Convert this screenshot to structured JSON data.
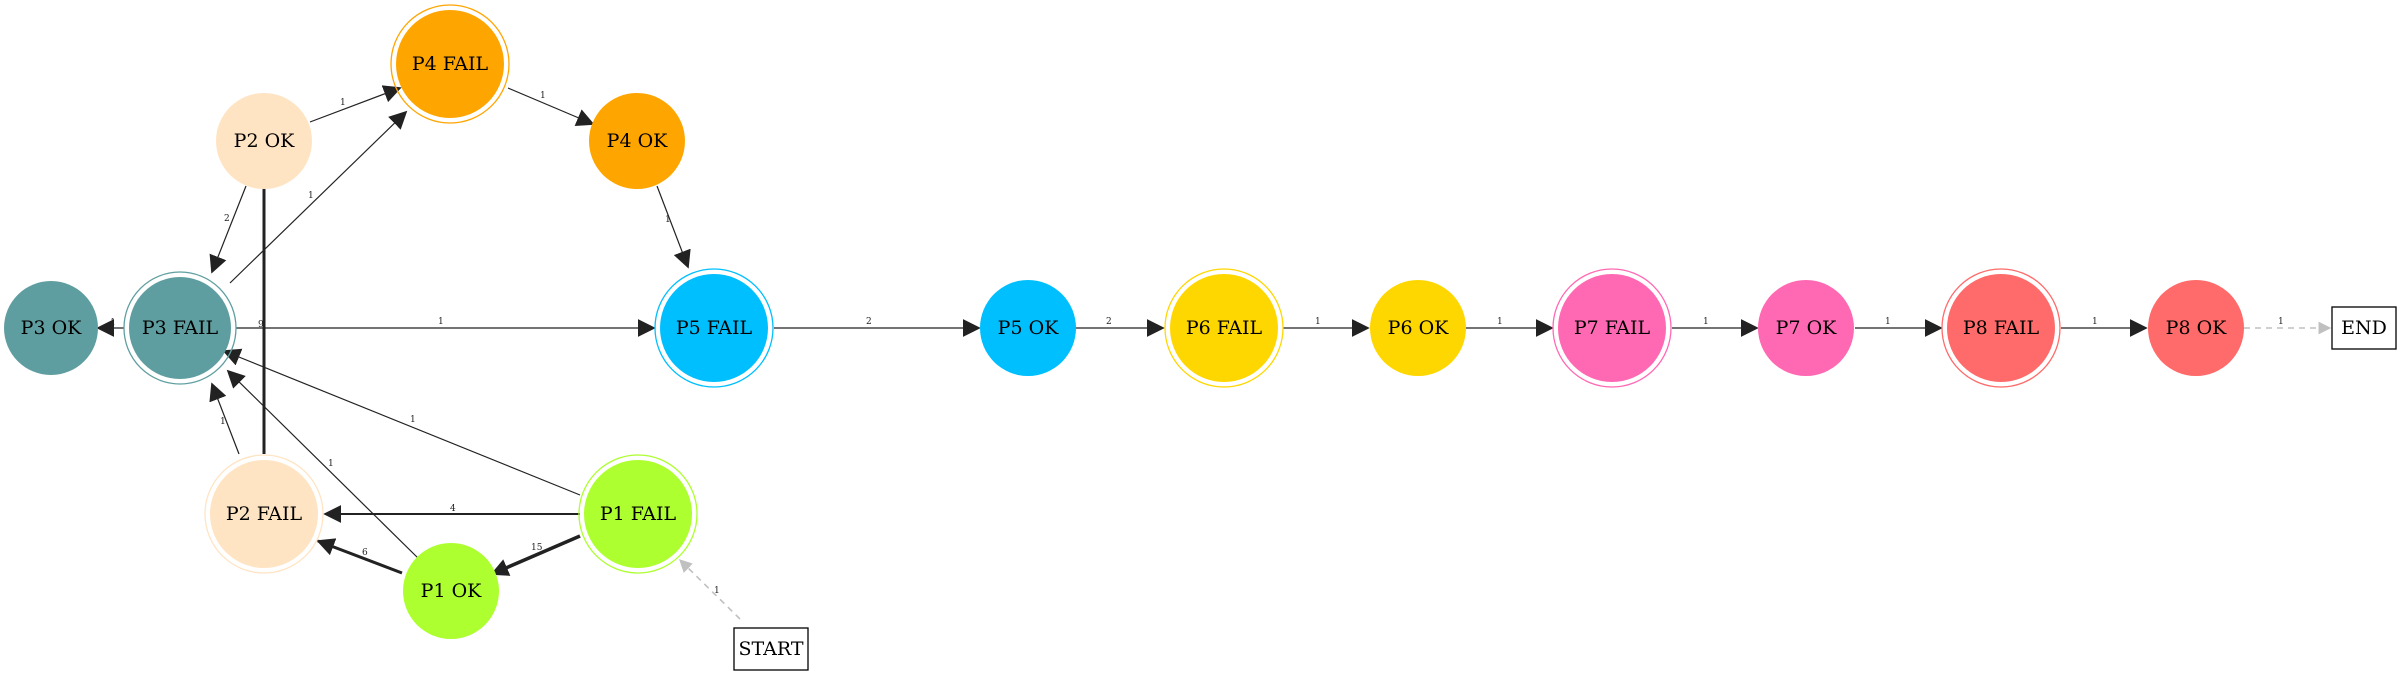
{
  "nodes": {
    "p3ok": {
      "label": "P3 OK",
      "color": "#5f9ea0"
    },
    "p3fail": {
      "label": "P3 FAIL",
      "color": "#5f9ea0"
    },
    "p2ok": {
      "label": "P2 OK",
      "color": "#ffe4c4"
    },
    "p2fail": {
      "label": "P2 FAIL",
      "color": "#ffe4c4"
    },
    "p4fail": {
      "label": "P4 FAIL",
      "color": "#ffa500"
    },
    "p4ok": {
      "label": "P4 OK",
      "color": "#ffa500"
    },
    "p5fail": {
      "label": "P5 FAIL",
      "color": "#00bfff"
    },
    "p5ok": {
      "label": "P5 OK",
      "color": "#00bfff"
    },
    "p6fail": {
      "label": "P6 FAIL",
      "color": "#ffd700"
    },
    "p6ok": {
      "label": "P6 OK",
      "color": "#ffd700"
    },
    "p7fail": {
      "label": "P7 FAIL",
      "color": "#ff69b4"
    },
    "p7ok": {
      "label": "P7 OK",
      "color": "#ff69b4"
    },
    "p8fail": {
      "label": "P8 FAIL",
      "color": "#ff6a6a"
    },
    "p8ok": {
      "label": "P8 OK",
      "color": "#ff6a6a"
    },
    "p1fail": {
      "label": "P1 FAIL",
      "color": "#adff2f"
    },
    "p1ok": {
      "label": "P1 OK",
      "color": "#adff2f"
    },
    "start": {
      "label": "START"
    },
    "end": {
      "label": "END"
    }
  },
  "edges": {
    "p2ok_p4fail": {
      "label": "1"
    },
    "p4fail_p4ok": {
      "label": "1"
    },
    "p4ok_p5fail": {
      "label": "1"
    },
    "p3fail_p4fail": {
      "label": "1"
    },
    "p2ok_p3fail": {
      "label": "2"
    },
    "p3fail_p3ok": {
      "label": "1"
    },
    "p2fail_p2ok": {
      "label": "9"
    },
    "p3fail_p5fail": {
      "label": "1"
    },
    "p5fail_p5ok": {
      "label": "2"
    },
    "p5ok_p6fail": {
      "label": "2"
    },
    "p6fail_p6ok": {
      "label": "1"
    },
    "p6ok_p7fail": {
      "label": "1"
    },
    "p7fail_p7ok": {
      "label": "1"
    },
    "p7ok_p8fail": {
      "label": "1"
    },
    "p8fail_p8ok": {
      "label": "1"
    },
    "p8ok_end": {
      "label": "1"
    },
    "p1fail_p3fail": {
      "label": "1"
    },
    "p2fail_p3fail": {
      "label": "1"
    },
    "p1ok_p3fail": {
      "label": "1"
    },
    "p1fail_p2fail": {
      "label": "4"
    },
    "p1fail_p1ok": {
      "label": "15"
    },
    "p1ok_p2fail": {
      "label": "6"
    },
    "start_p1fail": {
      "label": "1"
    }
  }
}
